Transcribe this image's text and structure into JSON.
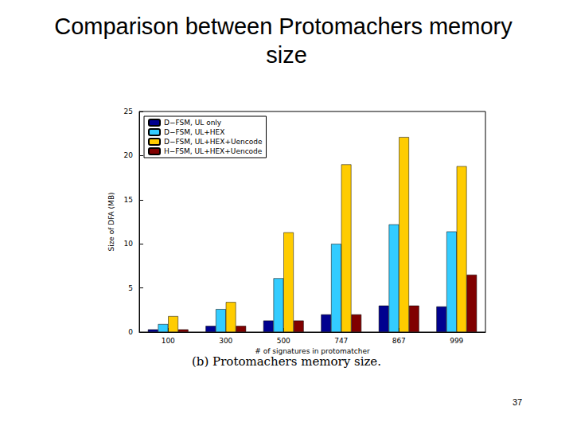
{
  "chart_data": {
    "type": "bar",
    "title": "Comparison between Protomachers memory size",
    "annotations": [
      "(b) Protomachers memory size.",
      "37"
    ],
    "x_label": "# of signatures in protomatcher",
    "y_label": "Size of DFA (MB)",
    "categories": [
      "100",
      "300",
      "500",
      "747",
      "867",
      "999"
    ],
    "series": [
      {
        "name": "D−FSM, UL only",
        "color": "#00008f",
        "values": [
          0.3,
          0.7,
          1.3,
          2.0,
          3.0,
          2.9
        ]
      },
      {
        "name": "D−FSM, UL+HEX",
        "color": "#33ccff",
        "values": [
          0.9,
          2.6,
          6.1,
          10.0,
          12.2,
          11.4
        ]
      },
      {
        "name": "D−FSM, UL+HEX+Uencode",
        "color": "#ffcc00",
        "values": [
          1.8,
          3.4,
          11.3,
          19.0,
          22.1,
          18.8
        ]
      },
      {
        "name": "H−FSM, UL+HEX+Uencode",
        "color": "#800000",
        "values": [
          0.3,
          0.7,
          1.3,
          2.0,
          3.0,
          6.5
        ]
      }
    ],
    "ylim": [
      0,
      25
    ],
    "yticks": [
      0,
      5,
      10,
      15,
      20,
      25
    ],
    "grid": false,
    "legend": "upper left"
  }
}
